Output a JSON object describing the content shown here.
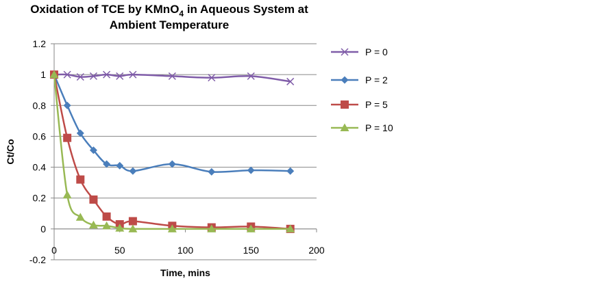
{
  "chart_data": {
    "type": "scatter",
    "title_lines": [
      {
        "parts": [
          {
            "text": "Oxidation of TCE by KMnO",
            "sub": false
          },
          {
            "text": "4",
            "sub": true
          },
          {
            "text": " in Aqueous System at",
            "sub": false
          }
        ]
      },
      {
        "parts": [
          {
            "text": "Ambient Temperature",
            "sub": false
          }
        ]
      }
    ],
    "xlabel": "Time, mins",
    "ylabel": "Ct/Co",
    "xlim": [
      0,
      200
    ],
    "ylim": [
      -0.2,
      1.2
    ],
    "xticks": [
      0,
      50,
      100,
      150,
      200
    ],
    "xtick_labels": [
      "0",
      "50",
      "100",
      "150",
      "200"
    ],
    "yticks": [
      -0.2,
      0,
      0.2,
      0.4,
      0.6,
      0.8,
      1,
      1.2
    ],
    "ytick_labels": [
      "-0.2",
      "0",
      "0.2",
      "0.4",
      "0.6",
      "0.8",
      "1",
      "1.2"
    ],
    "grid": {
      "horizontal": true,
      "vertical": false
    },
    "smooth_lines": true,
    "legend_position": "right",
    "series": [
      {
        "name": "P = 0",
        "marker": "x",
        "color": "#7F5CA8",
        "x": [
          0,
          10,
          20,
          30,
          40,
          50,
          60,
          90,
          120,
          150,
          180
        ],
        "y": [
          1.0,
          1.0,
          0.985,
          0.99,
          1.0,
          0.99,
          1.0,
          0.99,
          0.98,
          0.99,
          0.955
        ]
      },
      {
        "name": "P = 2",
        "marker": "diamond",
        "color": "#4A7EBB",
        "x": [
          0,
          10,
          20,
          30,
          40,
          50,
          60,
          90,
          120,
          150,
          180
        ],
        "y": [
          1.0,
          0.8,
          0.62,
          0.51,
          0.42,
          0.41,
          0.375,
          0.42,
          0.37,
          0.38,
          0.375
        ]
      },
      {
        "name": "P = 5",
        "marker": "square",
        "color": "#BE4B48",
        "x": [
          0,
          10,
          20,
          30,
          40,
          50,
          60,
          90,
          120,
          150,
          180
        ],
        "y": [
          1.0,
          0.59,
          0.32,
          0.19,
          0.08,
          0.03,
          0.05,
          0.02,
          0.01,
          0.015,
          0.0
        ]
      },
      {
        "name": "P = 10",
        "marker": "triangle",
        "color": "#98B954",
        "x": [
          0,
          10,
          20,
          30,
          40,
          50,
          60,
          90,
          120,
          150,
          180
        ],
        "y": [
          1.0,
          0.22,
          0.075,
          0.025,
          0.02,
          0.005,
          0.0,
          0.0,
          0.0,
          0.0,
          0.0
        ]
      }
    ]
  }
}
